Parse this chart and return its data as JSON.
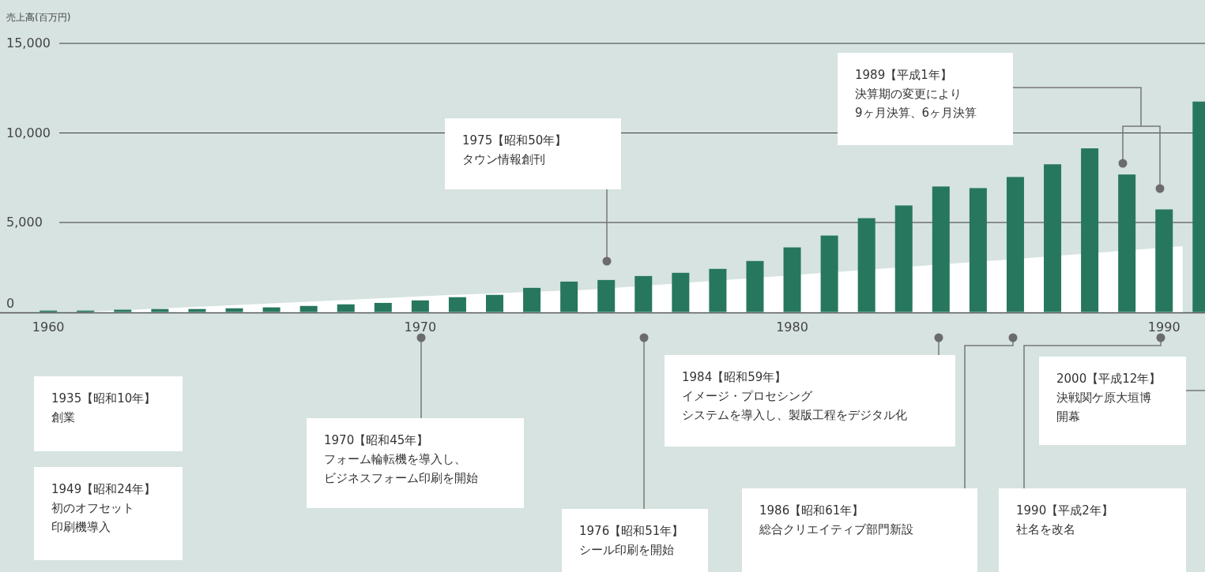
{
  "chart_data": {
    "type": "bar",
    "ylabel": "売上高(百万円)",
    "x": [
      1960,
      1961,
      1962,
      1963,
      1964,
      1965,
      1966,
      1967,
      1968,
      1969,
      1970,
      1971,
      1972,
      1973,
      1974,
      1975,
      1976,
      1977,
      1978,
      1979,
      1980,
      1981,
      1982,
      1983,
      1984,
      1985,
      1986,
      1987,
      1988,
      1989,
      1990,
      1991
    ],
    "series": [
      {
        "type": "area",
        "color": "#ffffff",
        "x": [
          1961,
          1970.5,
          1974.5,
          1985.5,
          1990.5
        ],
        "values": [
          0,
          920,
          1240,
          2880,
          3680
        ]
      },
      {
        "color": "#27775f",
        "values": [
          80,
          80,
          130,
          170,
          170,
          210,
          260,
          340,
          430,
          510,
          650,
          830,
          960,
          1350,
          1700,
          1790,
          2010,
          2190,
          2410,
          2850,
          3610,
          4270,
          5240,
          5950,
          7010,
          6920,
          7540,
          8250,
          9140,
          7680,
          5730,
          11750
        ]
      }
    ],
    "xlim": [
      1958.7,
      1991.1
    ],
    "xticks": [
      1960,
      1970,
      1980,
      1990
    ],
    "ylim": [
      0,
      15000
    ],
    "yticks": [
      0,
      {
        "value": 5000,
        "label": "5,000"
      },
      {
        "value": 10000,
        "label": "10,000"
      },
      {
        "value": 15000,
        "label": "15,000"
      }
    ],
    "grid": "y",
    "annotations": [
      "1935【昭和10年】",
      "創業",
      "1949【昭和24年】",
      "初のオフセット",
      "印刷機導入",
      "1970【昭和45年】",
      "フォーム輪転機を導入し、",
      "ビジネスフォーム印刷を開始",
      "1975【昭和50年】",
      "タウン情報創刊",
      "1976【昭和51年】",
      "シール印刷を開始",
      "1984【昭和59年】",
      "イメージ・プロセシング",
      "システムを導入し、製版工程をデジタル化",
      "1986【昭和61年】",
      "総合クリエイティブ部門新設",
      "1989【平成1年】",
      "決算期の変更により",
      "9ヶ月決算、6ヶ月決算",
      "1990【平成2年】",
      "社名を改名",
      "2000【平成12年】",
      "決戦関ケ原大垣博",
      "開幕"
    ]
  }
}
